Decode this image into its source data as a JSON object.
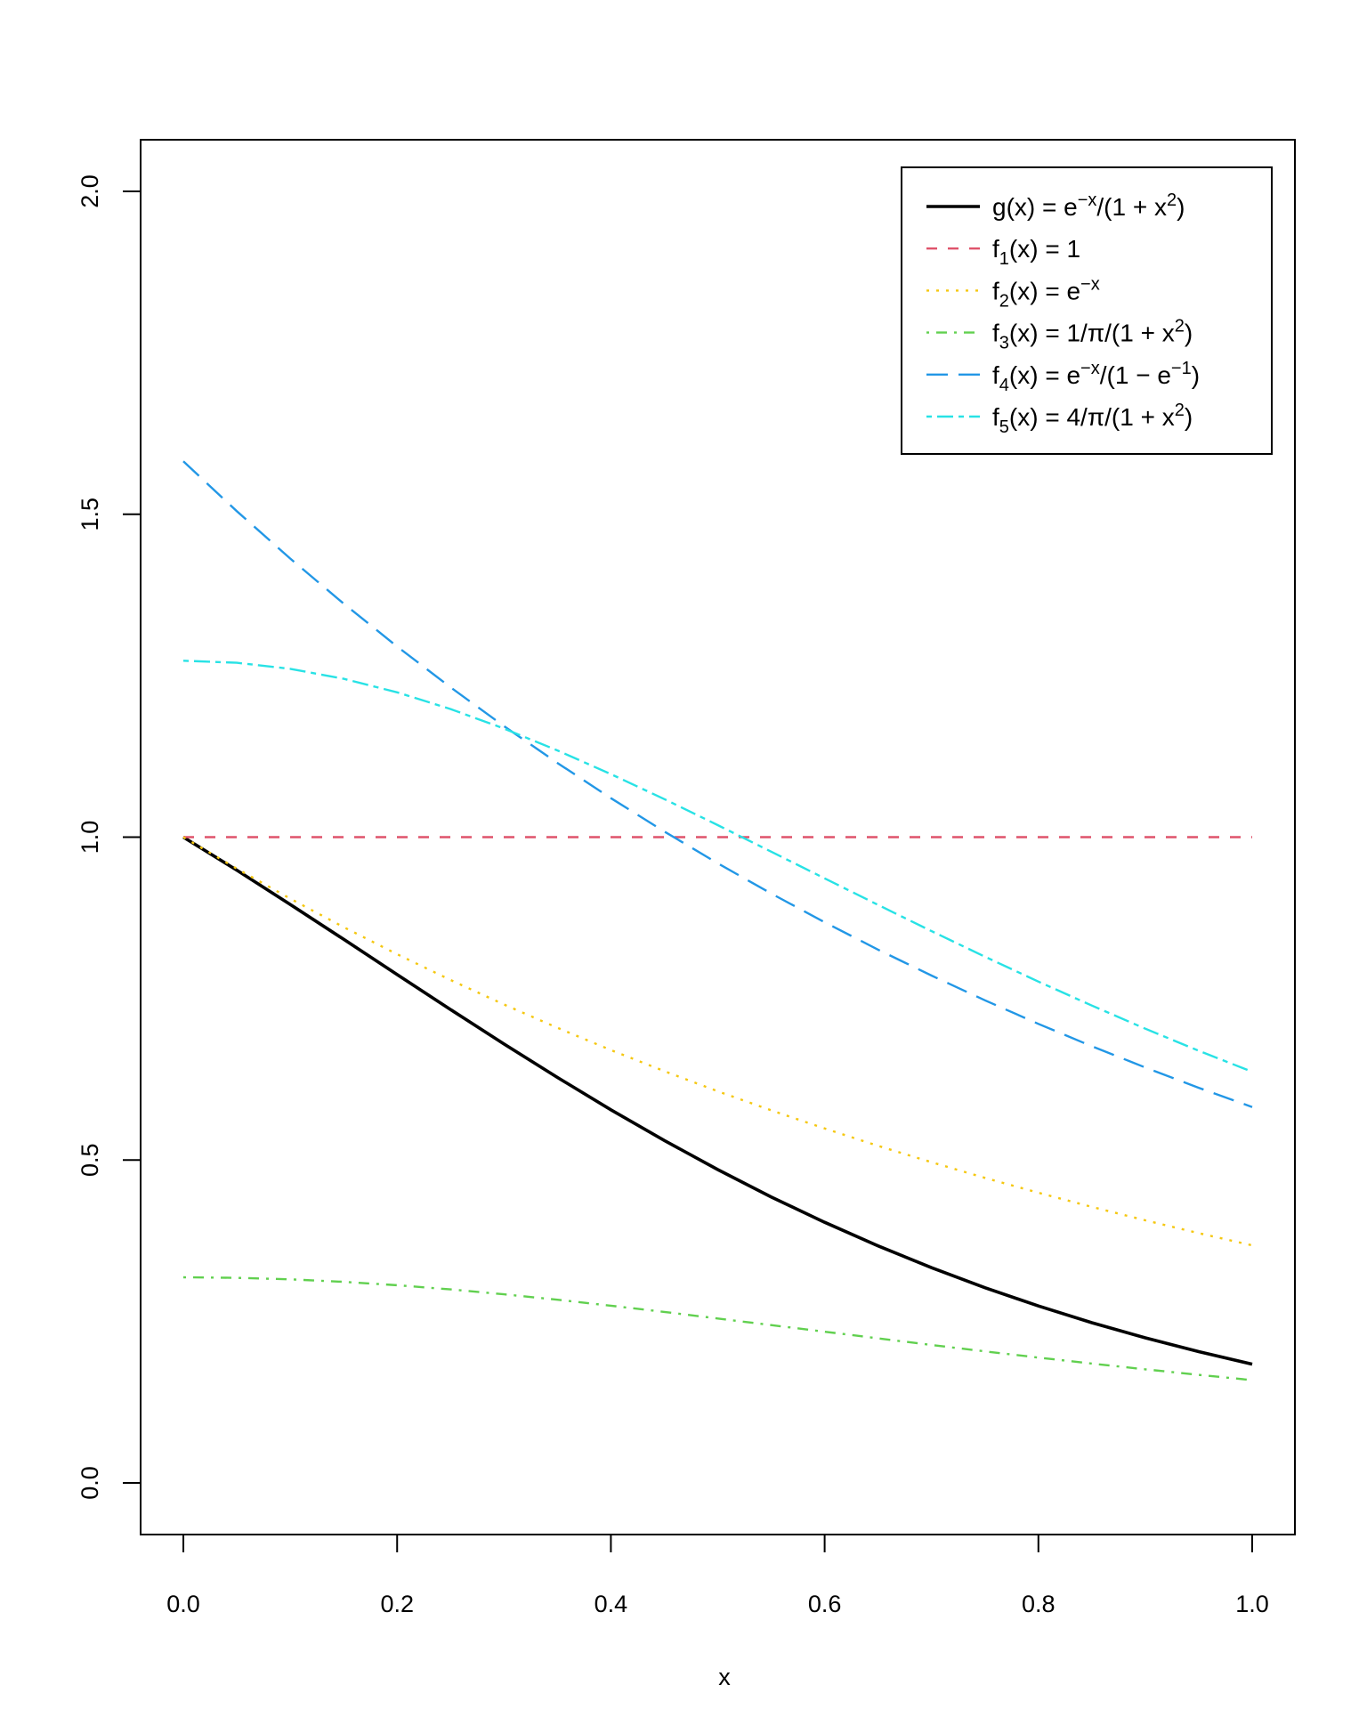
{
  "chart_data": {
    "type": "line",
    "title": "",
    "xlabel": "x",
    "ylabel": "",
    "xlim": [
      0,
      1
    ],
    "ylim": [
      0,
      2
    ],
    "grid": false,
    "legend_position": "top-right",
    "x_ticks": [
      "0.0",
      "0.2",
      "0.4",
      "0.6",
      "0.8",
      "1.0"
    ],
    "x_tick_values": [
      0,
      0.2,
      0.4,
      0.6,
      0.8,
      1.0
    ],
    "y_ticks": [
      "0.0",
      "0.5",
      "1.0",
      "1.5",
      "2.0"
    ],
    "y_tick_values": [
      0,
      0.5,
      1.0,
      1.5,
      2.0
    ],
    "x": [
      0,
      0.05,
      0.1,
      0.15,
      0.2,
      0.25,
      0.3,
      0.35,
      0.4,
      0.45,
      0.5,
      0.55,
      0.6,
      0.65,
      0.7,
      0.75,
      0.8,
      0.85,
      0.9,
      0.95,
      1.0
    ],
    "series": [
      {
        "name": "g(x) = e^-x/(1+x^2)",
        "color": "#000000",
        "dash": "solid",
        "width": 3.6,
        "label": [
          {
            "t": "g(x) = e",
            "s": ""
          },
          {
            "t": "−x",
            "s": "sup"
          },
          {
            "t": "/(1 + x",
            "s": ""
          },
          {
            "t": "2",
            "s": "sup"
          },
          {
            "t": ")",
            "s": ""
          }
        ],
        "values": [
          1,
          0.9488,
          0.8958,
          0.8418,
          0.7872,
          0.733,
          0.6796,
          0.6278,
          0.5778,
          0.5302,
          0.4852,
          0.4429,
          0.4035,
          0.367,
          0.3333,
          0.3023,
          0.274,
          0.2481,
          0.2246,
          0.2033,
          0.1839
        ]
      },
      {
        "name": "f1(x) = 1",
        "color": "#DF536B",
        "dash": "12 12",
        "width": 2.4,
        "label": [
          {
            "t": "f",
            "s": ""
          },
          {
            "t": "1",
            "s": "sub"
          },
          {
            "t": "(x) = 1",
            "s": ""
          }
        ],
        "values": [
          1,
          1,
          1,
          1,
          1,
          1,
          1,
          1,
          1,
          1,
          1,
          1,
          1,
          1,
          1,
          1,
          1,
          1,
          1,
          1,
          1
        ]
      },
      {
        "name": "f2(x) = e^-x",
        "color": "#F5C710",
        "dash": "3 8",
        "width": 2.4,
        "label": [
          {
            "t": "f",
            "s": ""
          },
          {
            "t": "2",
            "s": "sub"
          },
          {
            "t": "(x) = e",
            "s": ""
          },
          {
            "t": "−x",
            "s": "sup"
          }
        ],
        "values": [
          1,
          0.9512,
          0.9048,
          0.8607,
          0.8187,
          0.7788,
          0.7408,
          0.7047,
          0.6703,
          0.6376,
          0.6065,
          0.5769,
          0.5488,
          0.522,
          0.4966,
          0.4724,
          0.4493,
          0.4274,
          0.4066,
          0.3867,
          0.3679
        ]
      },
      {
        "name": "f3(x) = 1/pi/(1+x^2)",
        "color": "#61D04F",
        "dash": "3 8 12 8",
        "width": 2.4,
        "label": [
          {
            "t": "f",
            "s": ""
          },
          {
            "t": "3",
            "s": "sub"
          },
          {
            "t": "(x) = 1/π/(1 + x",
            "s": ""
          },
          {
            "t": "2",
            "s": "sup"
          },
          {
            "t": ")",
            "s": ""
          }
        ],
        "values": [
          0.3183,
          0.3175,
          0.3152,
          0.3113,
          0.3061,
          0.2996,
          0.292,
          0.2836,
          0.2744,
          0.2647,
          0.2546,
          0.2444,
          0.2341,
          0.2238,
          0.2136,
          0.2037,
          0.1941,
          0.1848,
          0.1759,
          0.1673,
          0.1592
        ]
      },
      {
        "name": "f4(x) = e^-x/(1-e^-1)",
        "color": "#2297E6",
        "dash": "24 12",
        "width": 2.4,
        "label": [
          {
            "t": "f",
            "s": ""
          },
          {
            "t": "4",
            "s": "sub"
          },
          {
            "t": "(x) = e",
            "s": ""
          },
          {
            "t": "−x",
            "s": "sup"
          },
          {
            "t": "/(1 − e",
            "s": ""
          },
          {
            "t": "−1",
            "s": "sup"
          },
          {
            "t": ")",
            "s": ""
          }
        ],
        "values": [
          1.582,
          1.5048,
          1.4314,
          1.3616,
          1.2952,
          1.232,
          1.1719,
          1.1148,
          1.0604,
          1.0087,
          0.9595,
          0.9127,
          0.8682,
          0.8258,
          0.7856,
          0.7473,
          0.7108,
          0.6762,
          0.6432,
          0.6118,
          0.582
        ]
      },
      {
        "name": "f5(x) = 4/pi/(1+x^2)",
        "color": "#28E2E5",
        "dash": "6 6 18 6",
        "width": 2.4,
        "label": [
          {
            "t": "f",
            "s": ""
          },
          {
            "t": "5",
            "s": "sub"
          },
          {
            "t": "(x) = 4/π/(1 + x",
            "s": ""
          },
          {
            "t": "2",
            "s": "sup"
          },
          {
            "t": ")",
            "s": ""
          }
        ],
        "values": [
          1.2732,
          1.27,
          1.2606,
          1.2452,
          1.2243,
          1.1983,
          1.1681,
          1.1343,
          1.0976,
          1.0588,
          1.0186,
          0.9775,
          0.9362,
          0.8951,
          0.8545,
          0.8149,
          0.7763,
          0.7392,
          0.7034,
          0.6692,
          0.6366
        ]
      }
    ]
  }
}
